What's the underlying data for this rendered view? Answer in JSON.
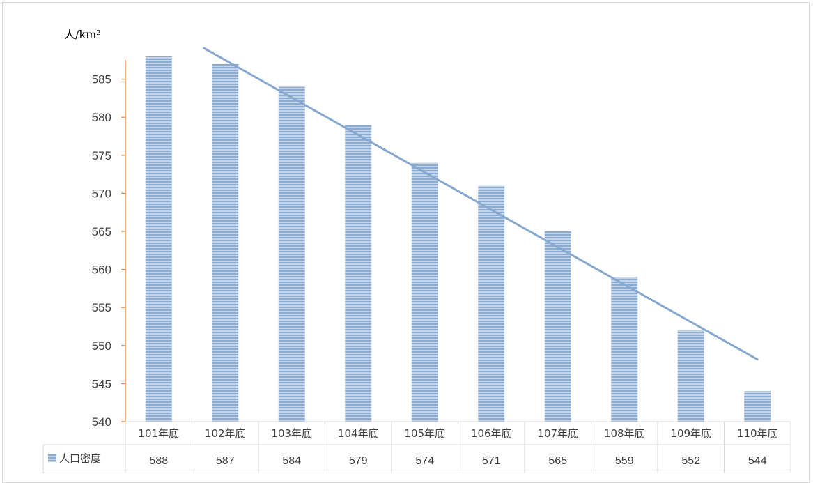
{
  "chart_data": {
    "type": "bar",
    "unit_label": "人/km²",
    "categories": [
      "101年底",
      "102年底",
      "103年底",
      "104年底",
      "105年底",
      "106年底",
      "107年底",
      "108年底",
      "109年底",
      "110年底"
    ],
    "series": [
      {
        "name": "人口密度",
        "values": [
          588,
          587,
          584,
          579,
          574,
          571,
          565,
          559,
          552,
          544
        ]
      }
    ],
    "ylim": [
      540,
      590
    ],
    "yticks": [
      540,
      545,
      550,
      555,
      560,
      565,
      570,
      575,
      580,
      585
    ],
    "trendline": "linear",
    "legend_position": "data-table",
    "grid": false,
    "colors": {
      "bar": "#a6bedb",
      "bar_stripe": "#7fa1c9",
      "trend": "#86a8cf",
      "axis": "#ed7d31",
      "table": "#d9d9d9"
    }
  }
}
